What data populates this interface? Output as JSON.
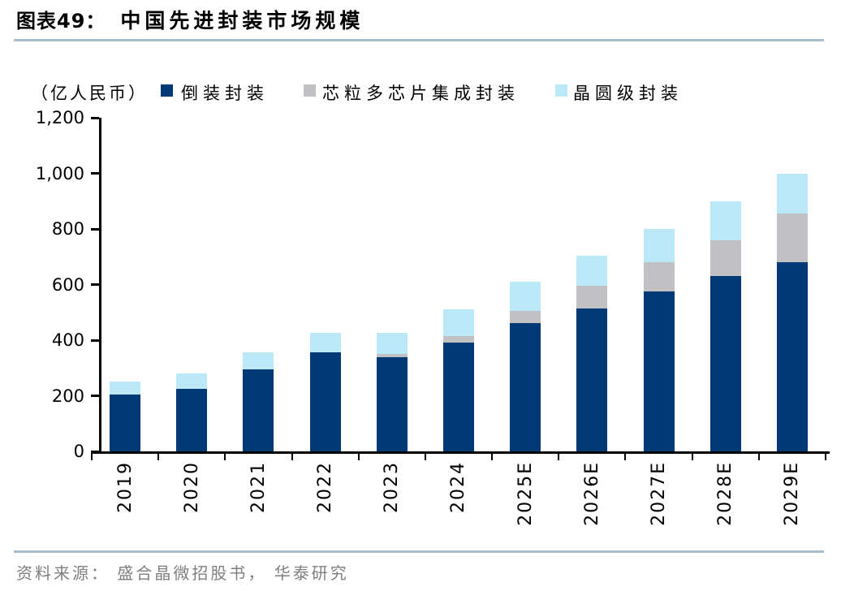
{
  "header": {
    "figure_label": "图表49：",
    "title": "中国先进封装市场规模"
  },
  "legend": {
    "unit_label": "（亿人民币）",
    "items": [
      {
        "id": "flip-chip",
        "label": "倒装封装",
        "color": "#003a76"
      },
      {
        "id": "chiplet-multi-die",
        "label": "芯粒多芯片集成封装",
        "color": "#c1c1c3"
      },
      {
        "id": "wafer-level",
        "label": "晶圆级封装",
        "color": "#bce9f8"
      }
    ]
  },
  "chart_data": {
    "type": "bar",
    "stacked": true,
    "title": "中国先进封装市场规模",
    "xlabel": "",
    "ylabel": "（亿人民币）",
    "ylim": [
      0,
      1200
    ],
    "ytick_step": 200,
    "grid": false,
    "legend_position": "top",
    "categories": [
      "2019",
      "2020",
      "2021",
      "2022",
      "2023",
      "2024",
      "2025E",
      "2026E",
      "2027E",
      "2028E",
      "2029E"
    ],
    "series": [
      {
        "name": "倒装封装",
        "id": "flip-chip",
        "color": "#003a76",
        "values": [
          205,
          225,
          295,
          355,
          340,
          390,
          460,
          515,
          575,
          630,
          680
        ]
      },
      {
        "name": "芯粒多芯片集成封装",
        "id": "chiplet-multi-die",
        "color": "#c1c1c3",
        "values": [
          0,
          0,
          0,
          0,
          10,
          25,
          45,
          80,
          105,
          130,
          175
        ]
      },
      {
        "name": "晶圆级封装",
        "id": "wafer-level",
        "color": "#bce9f8",
        "values": [
          45,
          55,
          60,
          70,
          75,
          95,
          105,
          110,
          120,
          140,
          145
        ]
      }
    ],
    "totals": [
      250,
      280,
      355,
      425,
      425,
      510,
      610,
      705,
      800,
      900,
      1000
    ]
  },
  "y_axis": {
    "tick_labels_top_to_bottom": [
      "1,200",
      "1,000",
      "800",
      "600",
      "400",
      "200",
      "0"
    ]
  },
  "footer": {
    "source": "资料来源： 盛合晶微招股书， 华泰研究"
  }
}
